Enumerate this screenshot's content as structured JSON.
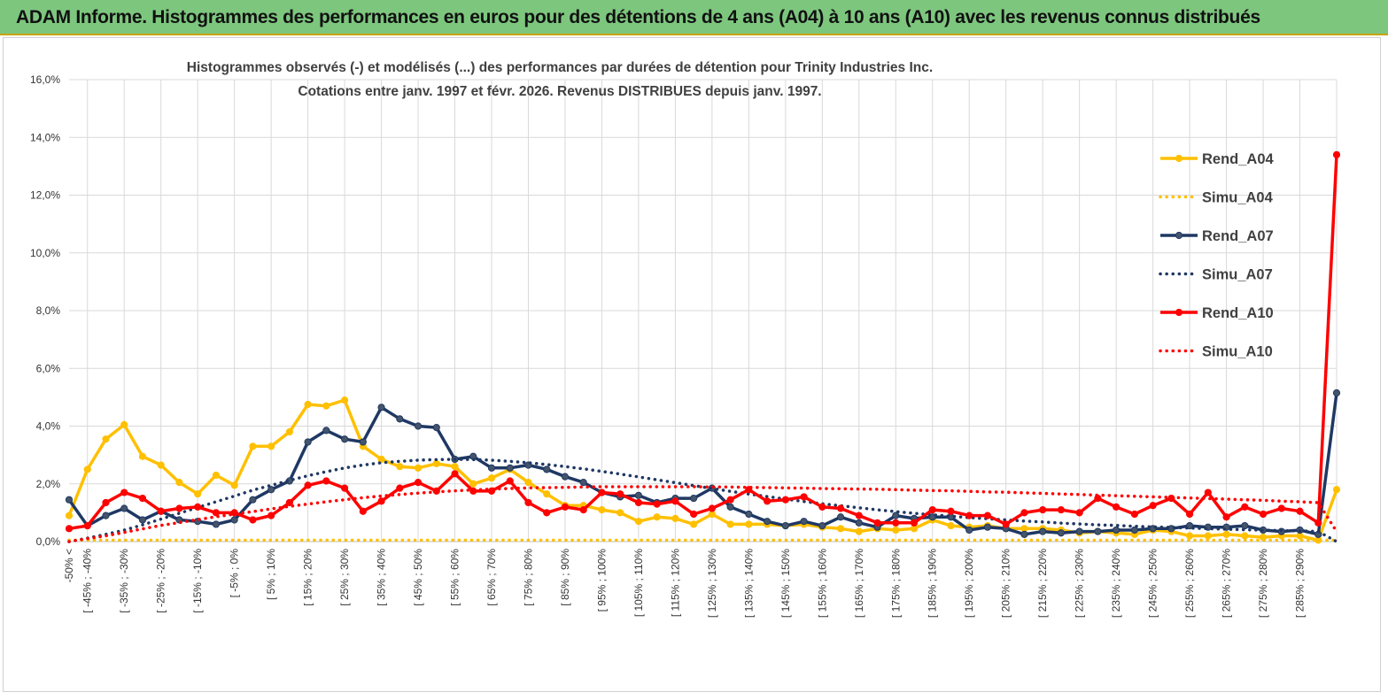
{
  "banner": {
    "title": "ADAM Informe. Histogrammes des performances en euros pour des détentions de 4 ans (A04) à 10 ans (A10) avec les revenus connus distribués"
  },
  "chart_data": {
    "type": "line",
    "title": "Histogrammes observés (-)  et modélisés (...) des performances par durées de détention pour Trinity Industries Inc.",
    "subtitle": "Cotations entre janv. 1997 et févr.  2026. Revenus DISTRIBUES depuis janv. 1997.",
    "xlabel": "",
    "ylabel": "",
    "ylim": [
      0,
      16
    ],
    "y_ticks": [
      "0,0%",
      "2,0%",
      "4,0%",
      "6,0%",
      "8,0%",
      "10,0%",
      "12,0%",
      "14,0%",
      "16,0%"
    ],
    "x_tick_labels": [
      "-50% <",
      "[ -45% ; -40%",
      "[ -35% ; -30%",
      "[ -25% ; -20%",
      "[ -15% ; -10%",
      "[ -5% ; 0%",
      "[ 5% ; 10%",
      "[ 15% ; 20%",
      "[ 25% ; 30%",
      "[ 35% ; 40%",
      "[ 45% ; 50%",
      "[ 55% ; 60%",
      "[ 65% ; 70%",
      "[ 75% ; 80%",
      "[ 85% ; 90%",
      "[ 95% ; 100%",
      "[ 105% ; 110%",
      "[ 115% ; 120%",
      "[ 125% ; 130%",
      "[ 135% ; 140%",
      "[ 145% ; 150%",
      "[ 155% ; 160%",
      "[ 165% ; 170%",
      "[ 175% ; 180%",
      "[ 185% ; 190%",
      "[ 195% ; 200%",
      "[ 205% ; 210%",
      "[ 215% ; 220%",
      "[ 225% ; 230%",
      "[ 235% ; 240%",
      "[ 245% ; 250%",
      "[ 255% ; 260%",
      "[ 265% ; 270%",
      "[ 275% ; 280%",
      "[ 285% ; 290%"
    ],
    "n_bins": 70,
    "grid": true,
    "legend_position": "right",
    "series": [
      {
        "name": "Rend_A04",
        "style": "solid",
        "color": "#ffc000",
        "values": [
          0.9,
          2.5,
          3.55,
          4.05,
          2.95,
          2.65,
          2.05,
          1.65,
          2.3,
          1.95,
          3.3,
          3.3,
          3.8,
          4.75,
          4.7,
          4.9,
          3.3,
          2.85,
          2.6,
          2.55,
          2.7,
          2.6,
          2.0,
          2.2,
          2.5,
          2.05,
          1.65,
          1.25,
          1.25,
          1.1,
          1.0,
          0.7,
          0.85,
          0.8,
          0.6,
          0.95,
          0.6,
          0.6,
          0.6,
          0.55,
          0.6,
          0.5,
          0.45,
          0.35,
          0.45,
          0.4,
          0.45,
          0.75,
          0.55,
          0.5,
          0.55,
          0.45,
          0.45,
          0.45,
          0.4,
          0.3,
          0.35,
          0.3,
          0.25,
          0.4,
          0.35,
          0.2,
          0.2,
          0.25,
          0.2,
          0.15,
          0.2,
          0.2,
          0.05,
          1.8
        ]
      },
      {
        "name": "Simu_A04",
        "style": "dotted",
        "color": "#ffc000",
        "values": [
          0.05,
          0.05,
          0.05,
          0.05,
          0.05,
          0.05,
          0.05,
          0.05,
          0.05,
          0.05,
          0.05,
          0.05,
          0.05,
          0.05,
          0.05,
          0.05,
          0.05,
          0.05,
          0.05,
          0.05,
          0.05,
          0.05,
          0.05,
          0.05,
          0.05,
          0.05,
          0.05,
          0.05,
          0.05,
          0.05,
          0.05,
          0.05,
          0.05,
          0.05,
          0.05,
          0.05,
          0.05,
          0.05,
          0.05,
          0.05,
          0.05,
          0.05,
          0.05,
          0.05,
          0.05,
          0.05,
          0.05,
          0.05,
          0.05,
          0.05,
          0.05,
          0.05,
          0.05,
          0.05,
          0.05,
          0.05,
          0.05,
          0.05,
          0.05,
          0.05,
          0.05,
          0.05,
          0.05,
          0.05,
          0.05,
          0.05,
          0.05,
          0.05,
          0.05,
          0.05
        ]
      },
      {
        "name": "Rend_A07",
        "style": "solid",
        "color": "#1f3864",
        "values": [
          1.45,
          0.55,
          0.9,
          1.15,
          0.75,
          1.05,
          0.75,
          0.7,
          0.6,
          0.75,
          1.45,
          1.8,
          2.1,
          3.45,
          3.85,
          3.55,
          3.45,
          4.65,
          4.25,
          4.0,
          3.95,
          2.85,
          2.95,
          2.55,
          2.55,
          2.65,
          2.5,
          2.25,
          2.05,
          1.7,
          1.55,
          1.6,
          1.35,
          1.5,
          1.5,
          1.85,
          1.2,
          0.95,
          0.7,
          0.55,
          0.7,
          0.55,
          0.85,
          0.65,
          0.5,
          0.9,
          0.8,
          0.85,
          0.85,
          0.4,
          0.5,
          0.45,
          0.25,
          0.35,
          0.3,
          0.35,
          0.35,
          0.4,
          0.4,
          0.45,
          0.45,
          0.55,
          0.5,
          0.5,
          0.55,
          0.4,
          0.35,
          0.4,
          0.25,
          5.15
        ]
      },
      {
        "name": "Simu_A07",
        "style": "dotted",
        "color": "#1f3864",
        "values": [
          0.0,
          0.12,
          0.25,
          0.4,
          0.58,
          0.78,
          0.98,
          1.18,
          1.38,
          1.58,
          1.78,
          1.95,
          2.12,
          2.28,
          2.42,
          2.55,
          2.65,
          2.73,
          2.78,
          2.82,
          2.84,
          2.85,
          2.84,
          2.82,
          2.78,
          2.73,
          2.67,
          2.6,
          2.52,
          2.43,
          2.34,
          2.24,
          2.14,
          2.04,
          1.94,
          1.84,
          1.74,
          1.65,
          1.56,
          1.47,
          1.39,
          1.31,
          1.24,
          1.17,
          1.1,
          1.04,
          0.98,
          0.93,
          0.88,
          0.83,
          0.79,
          0.75,
          0.71,
          0.68,
          0.64,
          0.61,
          0.58,
          0.56,
          0.53,
          0.51,
          0.49,
          0.47,
          0.45,
          0.43,
          0.41,
          0.4,
          0.38,
          0.37,
          0.35,
          0.0
        ]
      },
      {
        "name": "Rend_A10",
        "style": "solid",
        "color": "#ff0000",
        "values": [
          0.45,
          0.55,
          1.35,
          1.7,
          1.5,
          1.05,
          1.15,
          1.2,
          1.0,
          1.0,
          0.75,
          0.9,
          1.35,
          1.95,
          2.1,
          1.85,
          1.05,
          1.4,
          1.85,
          2.05,
          1.75,
          2.35,
          1.75,
          1.75,
          2.1,
          1.35,
          1.0,
          1.2,
          1.1,
          1.7,
          1.65,
          1.35,
          1.3,
          1.4,
          0.95,
          1.15,
          1.45,
          1.8,
          1.4,
          1.45,
          1.55,
          1.2,
          1.15,
          0.9,
          0.65,
          0.65,
          0.65,
          1.1,
          1.05,
          0.9,
          0.9,
          0.6,
          1.0,
          1.1,
          1.1,
          1.0,
          1.5,
          1.2,
          0.95,
          1.25,
          1.5,
          0.95,
          1.7,
          0.85,
          1.2,
          0.95,
          1.15,
          1.05,
          0.65,
          13.4
        ]
      },
      {
        "name": "Simu_A10",
        "style": "dotted",
        "color": "#ff0000",
        "values": [
          0.0,
          0.1,
          0.2,
          0.32,
          0.44,
          0.56,
          0.66,
          0.76,
          0.86,
          0.95,
          1.04,
          1.13,
          1.22,
          1.3,
          1.38,
          1.45,
          1.52,
          1.58,
          1.63,
          1.68,
          1.72,
          1.76,
          1.79,
          1.82,
          1.84,
          1.86,
          1.87,
          1.88,
          1.89,
          1.9,
          1.9,
          1.9,
          1.9,
          1.9,
          1.9,
          1.89,
          1.89,
          1.88,
          1.87,
          1.86,
          1.85,
          1.84,
          1.83,
          1.82,
          1.81,
          1.8,
          1.78,
          1.77,
          1.76,
          1.74,
          1.72,
          1.71,
          1.69,
          1.67,
          1.65,
          1.63,
          1.61,
          1.59,
          1.57,
          1.55,
          1.53,
          1.51,
          1.49,
          1.47,
          1.45,
          1.43,
          1.4,
          1.38,
          1.35,
          0.35
        ]
      }
    ]
  }
}
